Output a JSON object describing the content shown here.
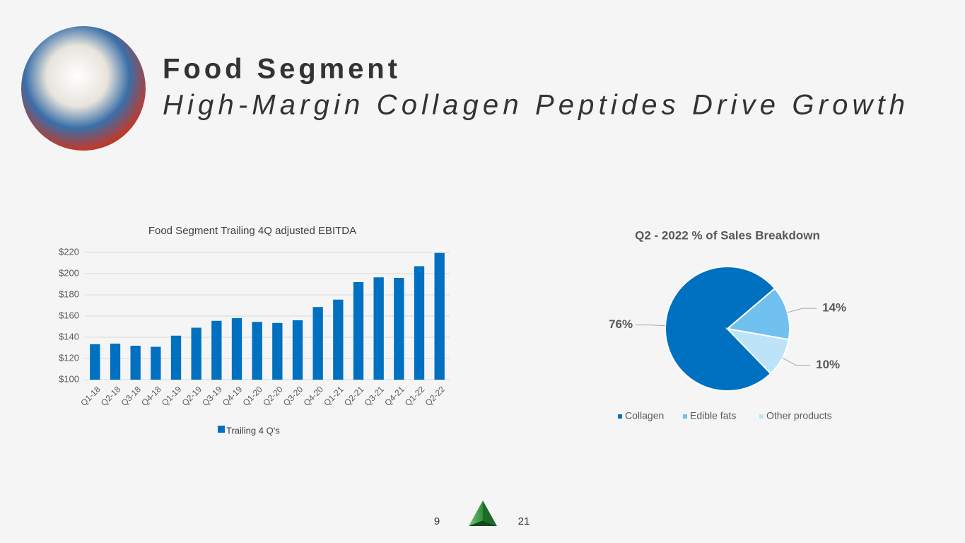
{
  "header": {
    "title": "Food Segment",
    "subtitle": "High-Margin Collagen Peptides Drive Growth"
  },
  "chart_data": [
    {
      "type": "bar",
      "title": "Food Segment Trailing 4Q adjusted EBITDA",
      "categories": [
        "Q1-18",
        "Q2-18",
        "Q3-18",
        "Q4-18",
        "Q1-19",
        "Q2-19",
        "Q3-19",
        "Q4-19",
        "Q1-20",
        "Q2-20",
        "Q3-20",
        "Q4-20",
        "Q1-21",
        "Q2-21",
        "Q3-21",
        "Q4-21",
        "Q1-22",
        "Q2-22"
      ],
      "series": [
        {
          "name": "Trailing 4 Q's",
          "color": "#0070c0",
          "values": [
            133.5,
            134,
            132,
            131,
            141.5,
            149,
            155.5,
            158,
            154.5,
            153.5,
            156,
            168.5,
            175.5,
            192,
            196.5,
            196,
            207,
            219.5
          ]
        }
      ],
      "ylim": [
        100,
        220
      ],
      "yticks": [
        {
          "value": 100,
          "label": "$100"
        },
        {
          "value": 120,
          "label": "$120"
        },
        {
          "value": 140,
          "label": "$140"
        },
        {
          "value": 160,
          "label": "$160"
        },
        {
          "value": 180,
          "label": "$180"
        },
        {
          "value": 200,
          "label": "$200"
        },
        {
          "value": 220,
          "label": "$220"
        }
      ],
      "grid": true,
      "legend": "bottom"
    },
    {
      "type": "pie",
      "title": "Q2 - 2022 % of Sales Breakdown",
      "categories": [
        "Collagen",
        "Edible fats",
        "Other products"
      ],
      "values": [
        76,
        14,
        10
      ],
      "value_labels": [
        "76%",
        "14%",
        "10%"
      ],
      "colors": [
        "#0070c0",
        "#70c1f0",
        "#bde3f8"
      ],
      "legend": "bottom"
    }
  ],
  "footer": {
    "left_number": "9",
    "right_number": "21"
  }
}
